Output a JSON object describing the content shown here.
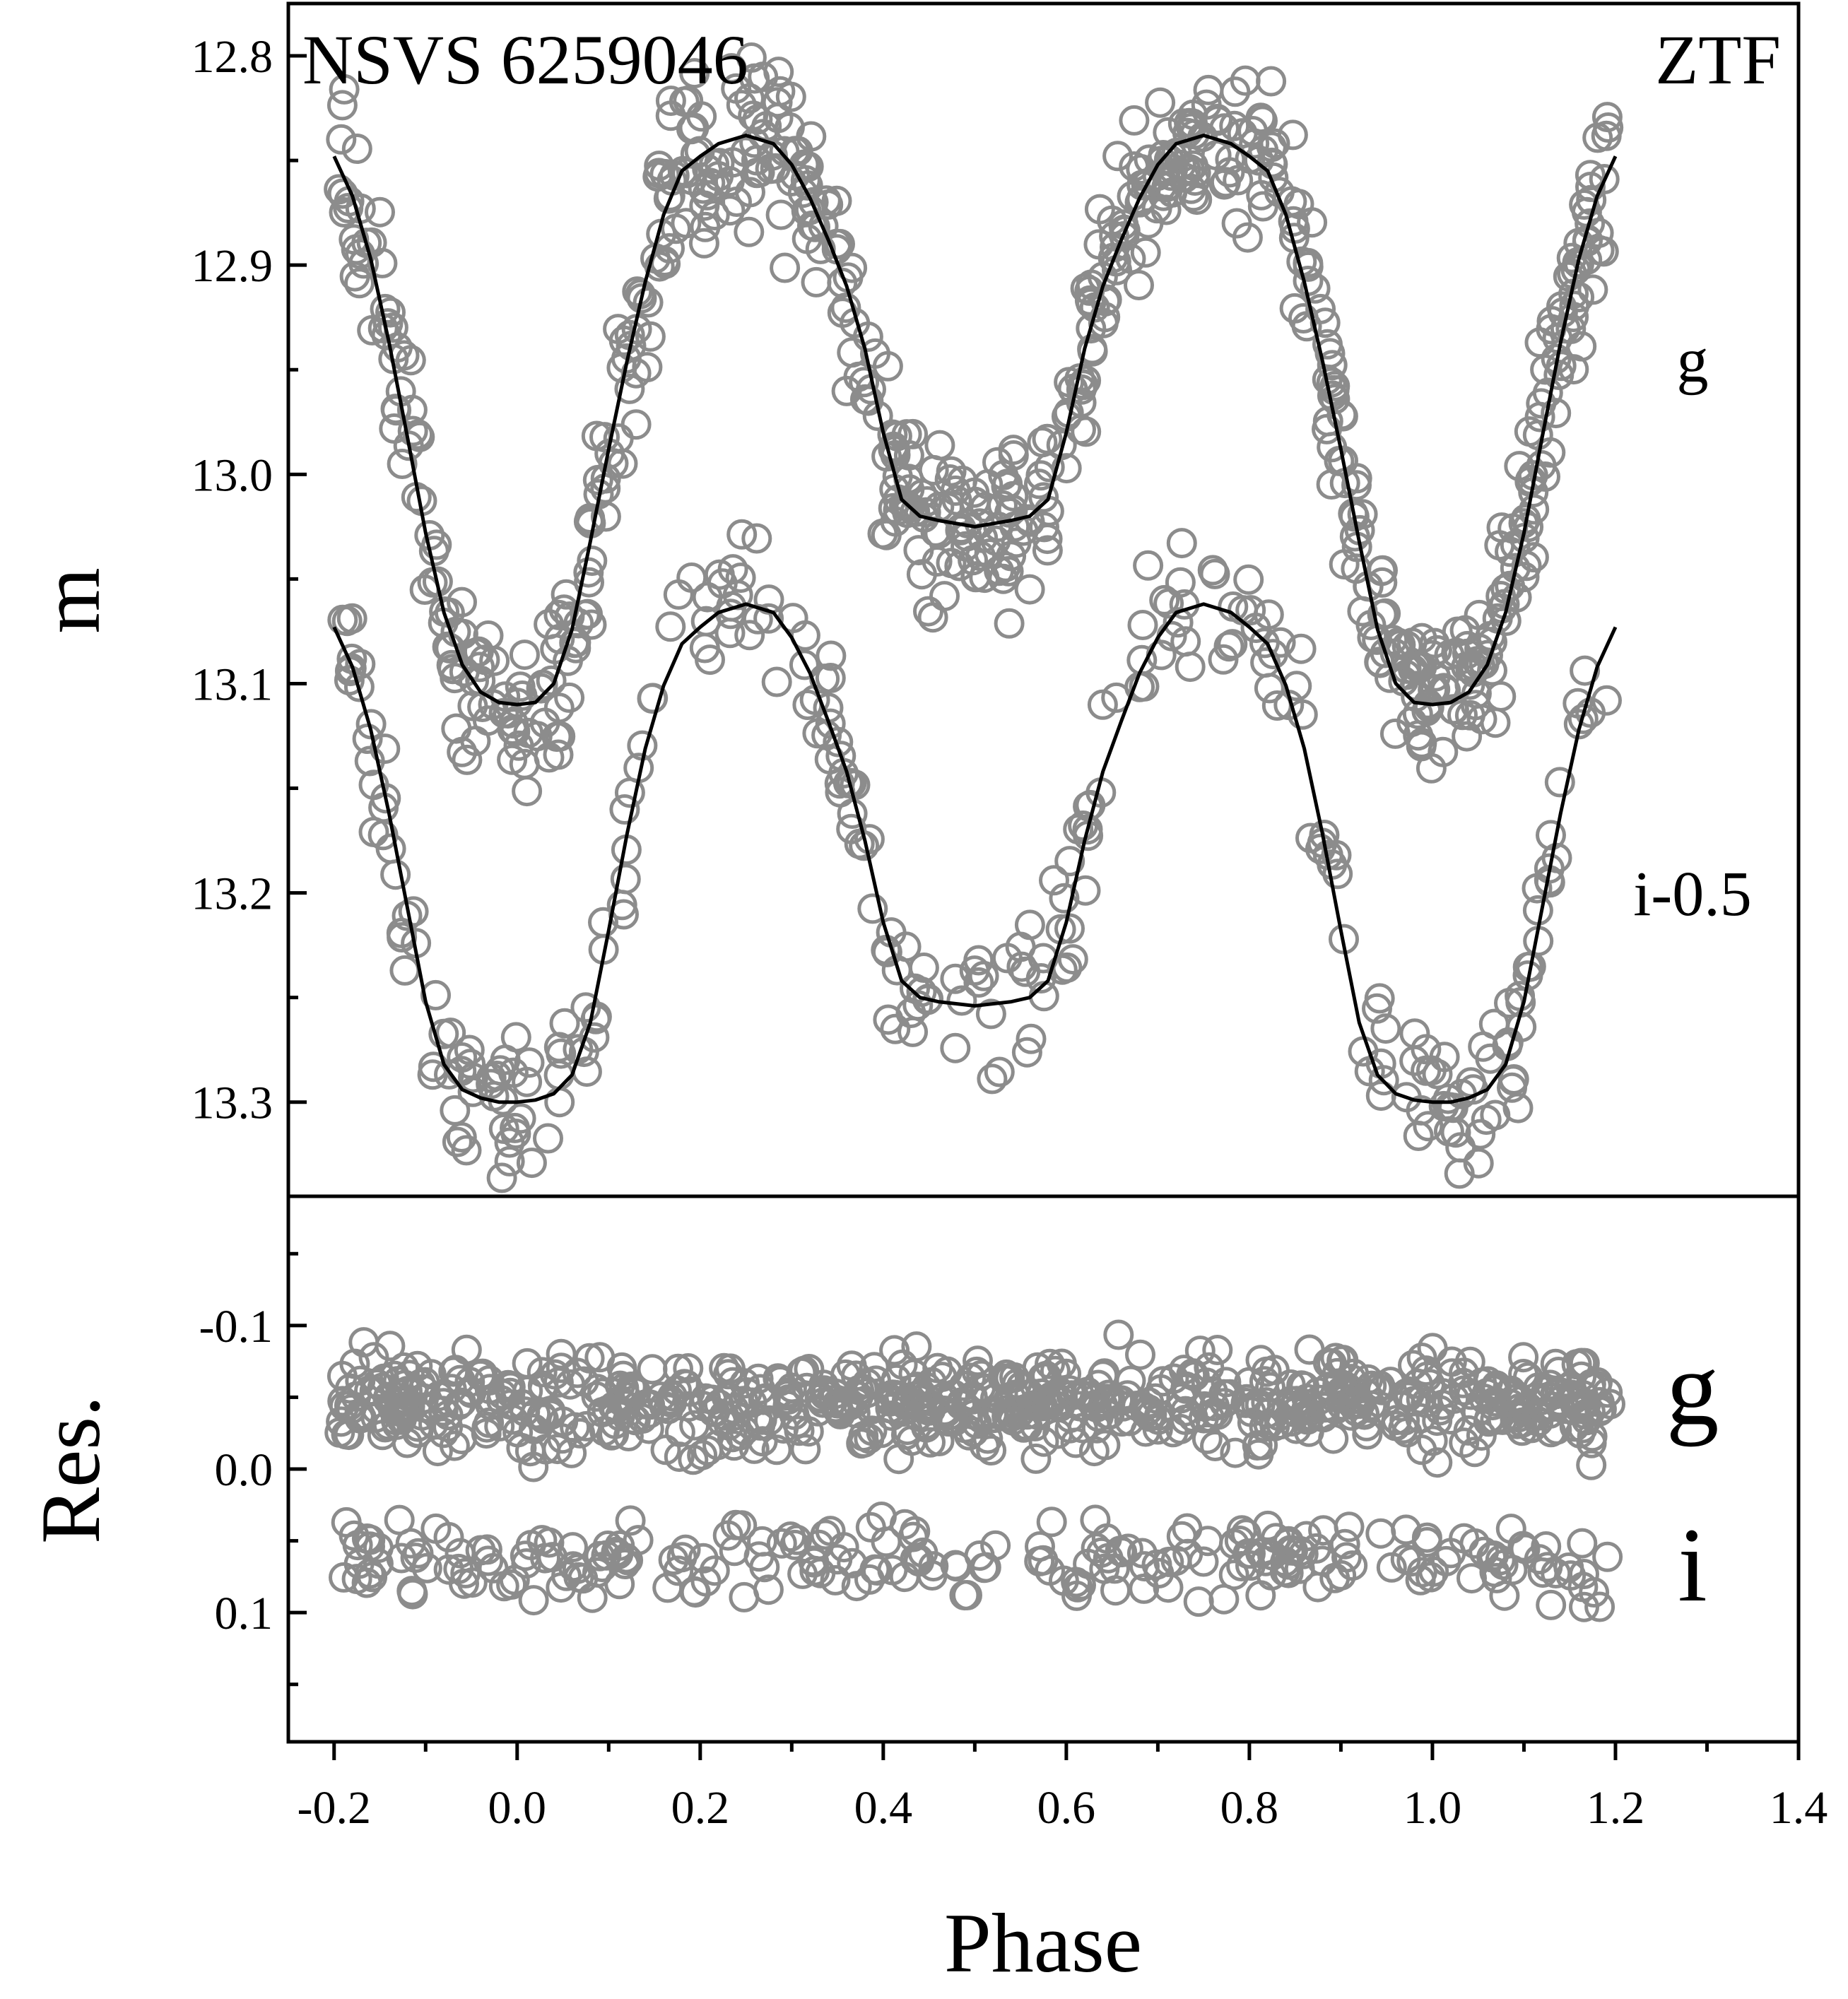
{
  "chart_data": {
    "type": "scatter",
    "panels": [
      {
        "id": "light-curve",
        "ylabel": "m",
        "ylim": [
          12.775,
          13.345
        ],
        "y_inverted": true,
        "yticks": [
          12.8,
          12.9,
          13.0,
          13.1,
          13.2,
          13.3
        ],
        "ytick_labels": [
          "12.8",
          "12.9",
          "13.0",
          "13.1",
          "13.2",
          "13.3"
        ],
        "annotations": {
          "object": "NSVS 6259046",
          "survey": "ZTF"
        },
        "series": [
          {
            "label": "g",
            "phase": [
              -0.2,
              -0.18,
              -0.16,
              -0.14,
              -0.12,
              -0.1,
              -0.08,
              -0.06,
              -0.04,
              -0.02,
              0.0,
              0.02,
              0.04,
              0.06,
              0.08,
              0.1,
              0.12,
              0.14,
              0.16,
              0.18,
              0.2,
              0.22,
              0.25,
              0.28,
              0.3,
              0.32,
              0.34,
              0.36,
              0.38,
              0.4,
              0.42,
              0.44,
              0.46,
              0.5,
              0.54,
              0.56,
              0.58,
              0.6,
              0.62,
              0.64,
              0.66,
              0.68,
              0.7,
              0.72,
              0.75,
              0.78,
              0.8,
              0.82,
              0.84,
              0.86,
              0.88,
              0.9,
              0.92,
              0.94,
              0.96,
              0.98,
              1.0,
              1.02,
              1.04,
              1.06,
              1.08,
              1.1,
              1.12,
              1.14,
              1.16,
              1.18,
              1.2
            ],
            "mag_fit": [
              12.848,
              12.867,
              12.897,
              12.937,
              12.982,
              13.028,
              13.066,
              13.091,
              13.104,
              13.109,
              13.11,
              13.109,
              13.1,
              13.074,
              13.032,
              12.988,
              12.946,
              12.908,
              12.876,
              12.855,
              12.848,
              12.842,
              12.838,
              12.842,
              12.852,
              12.868,
              12.888,
              12.91,
              12.94,
              12.98,
              13.012,
              13.02,
              13.022,
              13.025,
              13.022,
              13.02,
              13.012,
              12.98,
              12.94,
              12.91,
              12.888,
              12.868,
              12.852,
              12.842,
              12.838,
              12.842,
              12.848,
              12.855,
              12.876,
              12.908,
              12.946,
              12.988,
              13.032,
              13.074,
              13.1,
              13.109,
              13.11,
              13.109,
              13.104,
              13.091,
              13.066,
              13.028,
              12.982,
              12.937,
              12.897,
              12.867,
              12.848
            ],
            "scatter": 0.02
          },
          {
            "label": "i-0.5",
            "phase": [
              -0.2,
              -0.18,
              -0.16,
              -0.14,
              -0.12,
              -0.1,
              -0.08,
              -0.06,
              -0.04,
              -0.02,
              0.0,
              0.02,
              0.04,
              0.06,
              0.08,
              0.1,
              0.12,
              0.14,
              0.16,
              0.18,
              0.2,
              0.22,
              0.25,
              0.28,
              0.3,
              0.32,
              0.34,
              0.36,
              0.38,
              0.4,
              0.42,
              0.44,
              0.46,
              0.5,
              0.54,
              0.56,
              0.58,
              0.6,
              0.62,
              0.64,
              0.66,
              0.68,
              0.7,
              0.72,
              0.75,
              0.78,
              0.8,
              0.82,
              0.84,
              0.86,
              0.88,
              0.9,
              0.92,
              0.94,
              0.96,
              0.98,
              1.0,
              1.02,
              1.04,
              1.06,
              1.08,
              1.1,
              1.12,
              1.14,
              1.16,
              1.18,
              1.2
            ],
            "mag_fit": [
              13.073,
              13.092,
              13.122,
              13.162,
              13.207,
              13.252,
              13.282,
              13.294,
              13.298,
              13.3,
              13.3,
              13.299,
              13.296,
              13.287,
              13.262,
              13.218,
              13.172,
              13.131,
              13.101,
              13.081,
              13.073,
              13.066,
              13.062,
              13.066,
              13.078,
              13.095,
              13.118,
              13.142,
              13.175,
              13.214,
              13.242,
              13.25,
              13.252,
              13.254,
              13.252,
              13.25,
              13.242,
              13.214,
              13.175,
              13.142,
              13.118,
              13.095,
              13.078,
              13.066,
              13.062,
              13.066,
              13.073,
              13.081,
              13.101,
              13.131,
              13.172,
              13.218,
              13.262,
              13.287,
              13.296,
              13.299,
              13.3,
              13.3,
              13.298,
              13.294,
              13.282,
              13.252,
              13.207,
              13.162,
              13.122,
              13.092,
              13.073
            ],
            "scatter": 0.017
          }
        ]
      },
      {
        "id": "residuals",
        "ylabel": "Res.",
        "ylim": [
          0.19,
          -0.19
        ],
        "y_inverted": true,
        "yticks": [
          -0.1,
          0.0,
          0.1
        ],
        "ytick_labels": [
          "-0.1",
          "0.0",
          "0.1"
        ],
        "series": [
          {
            "label": "g",
            "offset": -0.045,
            "scatter": 0.016
          },
          {
            "label": "i",
            "offset": 0.064,
            "scatter": 0.014
          }
        ]
      }
    ],
    "xlabel": "Phase",
    "xlim": [
      -0.25,
      1.4
    ],
    "xticks": [
      -0.2,
      0.0,
      0.2,
      0.4,
      0.6,
      0.8,
      1.0,
      1.2,
      1.4
    ],
    "xtick_labels": [
      "-0.2",
      "0.0",
      "0.2",
      "0.4",
      "0.6",
      "0.8",
      "1.0",
      "1.2",
      "1.4"
    ],
    "marker": "open-circle",
    "marker_color": "#8c8c8c",
    "fit_color": "#000000"
  }
}
